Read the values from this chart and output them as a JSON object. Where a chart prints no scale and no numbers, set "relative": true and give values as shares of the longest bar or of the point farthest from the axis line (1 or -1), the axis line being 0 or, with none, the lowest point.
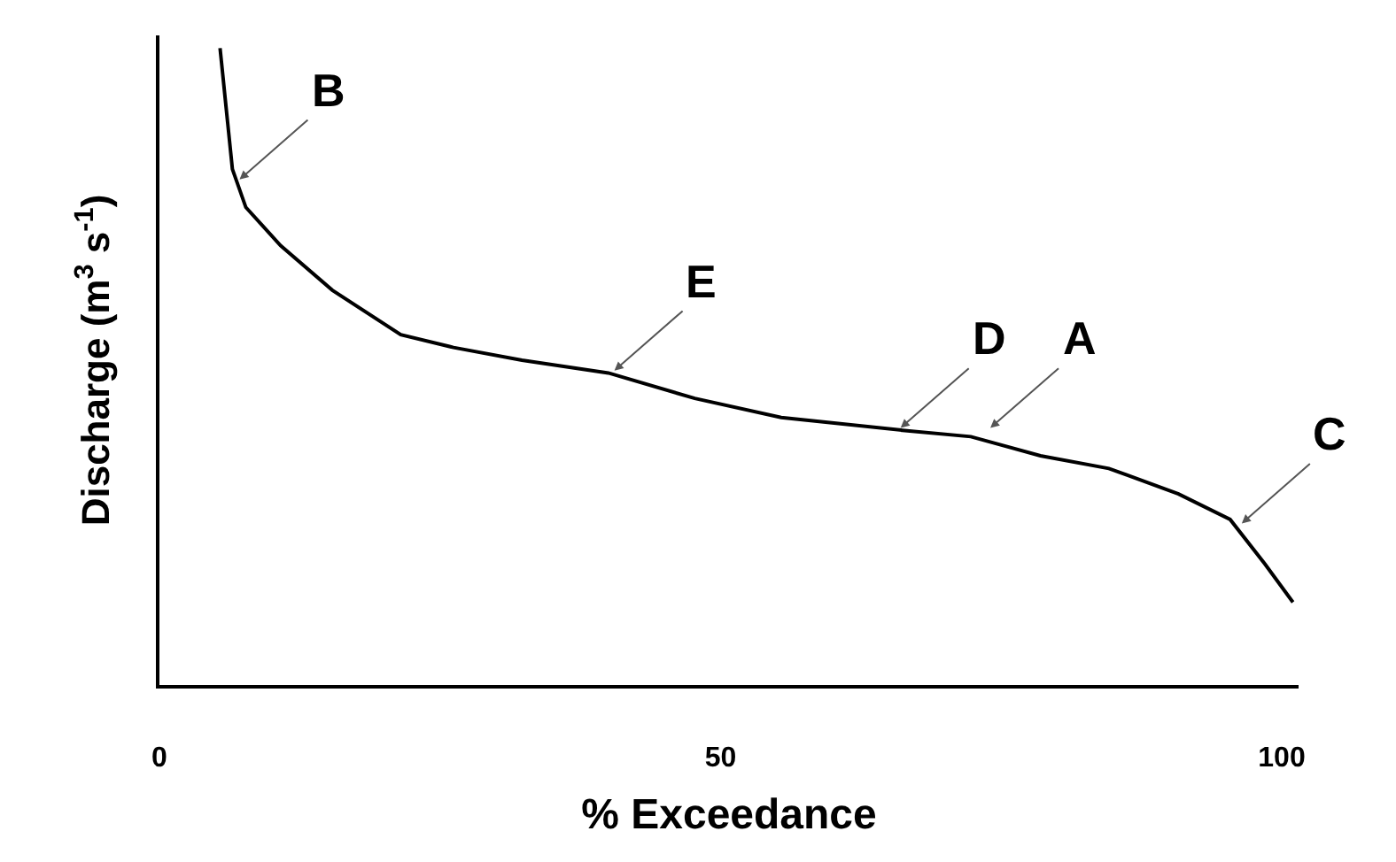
{
  "chart_data": {
    "type": "line",
    "relative": true,
    "xlabel": "% Exceedance",
    "ylabel": "Discharge (m$^{3}$ s$^{-1}$)",
    "x": [
      5.4,
      6.5,
      7.7,
      10.8,
      15.4,
      21.5,
      26.2,
      32.3,
      40,
      47.7,
      55.4,
      66.2,
      72.3,
      78.5,
      84.6,
      90.8,
      95.4,
      98.5,
      101
    ],
    "values": [
      1.0,
      0.81,
      0.75,
      0.69,
      0.62,
      0.55,
      0.53,
      0.51,
      0.49,
      0.45,
      0.42,
      0.4,
      0.39,
      0.36,
      0.34,
      0.3,
      0.26,
      0.19,
      0.13
    ],
    "color": "#000000",
    "xlim": [
      0,
      101.5
    ],
    "xticks": [
      0,
      50,
      100
    ],
    "tick_labels": "x",
    "grid": false,
    "marker": "none",
    "line_style": "solid",
    "annotations": [
      {
        "text": "B",
        "x": 6.9,
        "y": 0.79
      },
      {
        "text": "E",
        "x": 40.3,
        "y": 0.49
      },
      {
        "text": "D",
        "x": 65.8,
        "y": 0.4
      },
      {
        "text": "A",
        "x": 73.8,
        "y": 0.4
      },
      {
        "text": "C",
        "x": 96.2,
        "y": 0.25
      }
    ]
  }
}
